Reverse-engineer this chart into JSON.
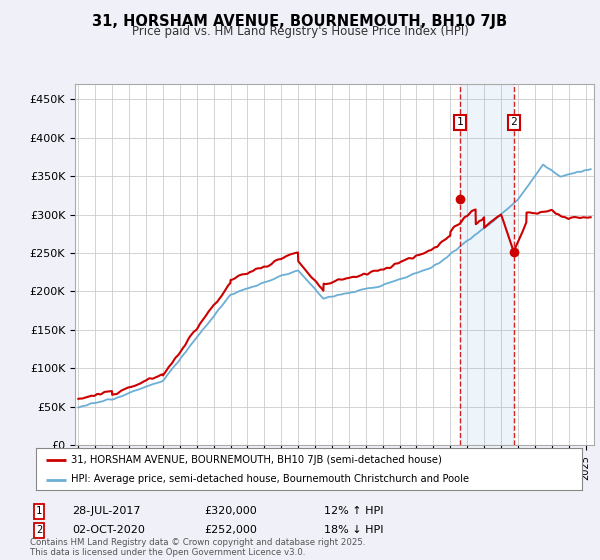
{
  "title_line1": "31, HORSHAM AVENUE, BOURNEMOUTH, BH10 7JB",
  "title_line2": "Price paid vs. HM Land Registry's House Price Index (HPI)",
  "ylabel_ticks": [
    "£0",
    "£50K",
    "£100K",
    "£150K",
    "£200K",
    "£250K",
    "£300K",
    "£350K",
    "£400K",
    "£450K"
  ],
  "ytick_vals": [
    0,
    50000,
    100000,
    150000,
    200000,
    250000,
    300000,
    350000,
    400000,
    450000
  ],
  "ylim": [
    0,
    470000
  ],
  "xlim_start": 1994.8,
  "xlim_end": 2025.5,
  "hpi_color": "#6baed6",
  "price_color": "#cc0000",
  "background_color": "#f0f0f8",
  "plot_bg_color": "#ffffff",
  "grid_color": "#cccccc",
  "sale1_year": 2017.57,
  "sale1_price": 320000,
  "sale1_label": "28-JUL-2017",
  "sale1_price_label": "£320,000",
  "sale1_hpi_label": "12% ↑ HPI",
  "sale2_year": 2020.75,
  "sale2_price": 252000,
  "sale2_label": "02-OCT-2020",
  "sale2_price_label": "£252,000",
  "sale2_hpi_label": "18% ↓ HPI",
  "legend_line1": "31, HORSHAM AVENUE, BOURNEMOUTH, BH10 7JB (semi-detached house)",
  "legend_line2": "HPI: Average price, semi-detached house, Bournemouth Christchurch and Poole",
  "footer": "Contains HM Land Registry data © Crown copyright and database right 2025.\nThis data is licensed under the Open Government Licence v3.0."
}
